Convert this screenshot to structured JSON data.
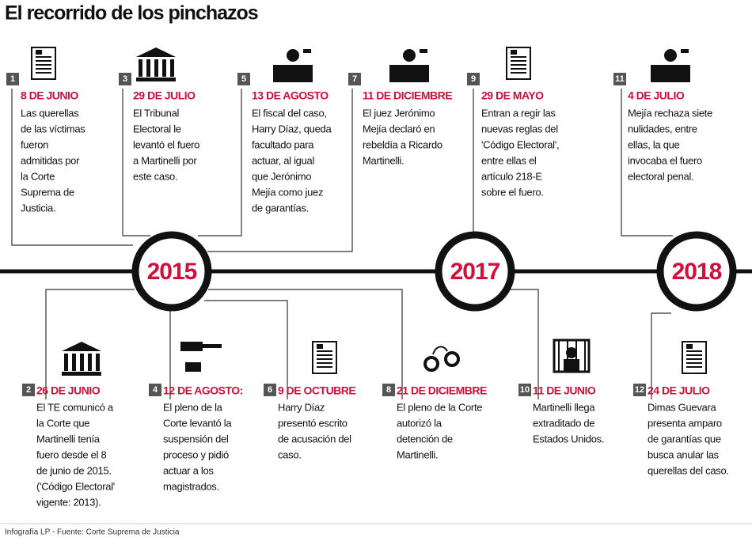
{
  "title": "El recorrido de los pinchazos",
  "years": [
    "2015",
    "2017",
    "2018"
  ],
  "events": [
    {
      "number": "1",
      "date": "8 DE JUNIO",
      "lines": [
        "Las querellas",
        "de las víctimas",
        "fueron",
        "admitidas por",
        "la Corte",
        "Suprema de",
        "Justicia."
      ]
    },
    {
      "number": "2",
      "date": "26 DE JUNIO",
      "lines": [
        "El TE comunicó a",
        "la Corte que",
        "Martinelli tenía",
        "fuero desde el 8",
        "de junio de 2015.",
        "('Código Electoral'",
        "vigente: 2013)."
      ]
    },
    {
      "number": "3",
      "date": "29 DE JULIO",
      "lines": [
        "El Tribunal",
        "Electoral le",
        "levantó el fuero",
        "a Martinelli por",
        "este caso."
      ]
    },
    {
      "number": "4",
      "date": "12 DE AGOSTO:",
      "lines": [
        "El pleno de la",
        "Corte levantó la",
        "suspensión del",
        "proceso y pidió",
        "actuar a los",
        "magistrados."
      ]
    },
    {
      "number": "5",
      "date": "13 DE AGOSTO",
      "lines": [
        "El fiscal del caso,",
        "Harry Díaz, queda",
        "facultado para",
        "actuar, al igual",
        "que Jerónimo",
        "Mejía como juez",
        "de garantías."
      ]
    },
    {
      "number": "6",
      "date": "9 DE OCTUBRE",
      "lines": [
        "Harry Díaz",
        "presentó escrito",
        "de acusación del",
        "caso."
      ]
    },
    {
      "number": "7",
      "date": "11 DE DICIEMBRE",
      "lines": [
        "El juez Jerónimo",
        "Mejía declaró en",
        "rebeldía a Ricardo",
        "Martinelli."
      ]
    },
    {
      "number": "8",
      "date": "21 DE DICIEMBRE",
      "lines": [
        "El pleno de la Corte",
        "autorizó la",
        "detención de",
        "Martinelli."
      ]
    },
    {
      "number": "9",
      "date": "29 DE MAYO",
      "lines": [
        "Entran a regir las",
        "nuevas reglas del",
        "'Código Electoral',",
        "entre ellas el",
        "artículo 218-E",
        "sobre el fuero."
      ]
    },
    {
      "number": "10",
      "date": "11 DE JUNIO",
      "lines": [
        "Martinelli llega",
        "extraditado de",
        "Estados Unidos."
      ]
    },
    {
      "number": "11",
      "date": "4 DE JULIO",
      "lines": [
        "Mejía rechaza siete",
        "nulidades, entre",
        "ellas, la que",
        "invocaba el fuero",
        "electoral penal."
      ]
    },
    {
      "number": "12",
      "date": "24 DE JULIO",
      "lines": [
        "Dimas Guevara",
        "presenta amparo",
        "de garantías que",
        "busca anular las",
        "querellas del caso."
      ]
    }
  ],
  "footer": "Infografía LP - Fuente: Corte Suprema de Justicia"
}
